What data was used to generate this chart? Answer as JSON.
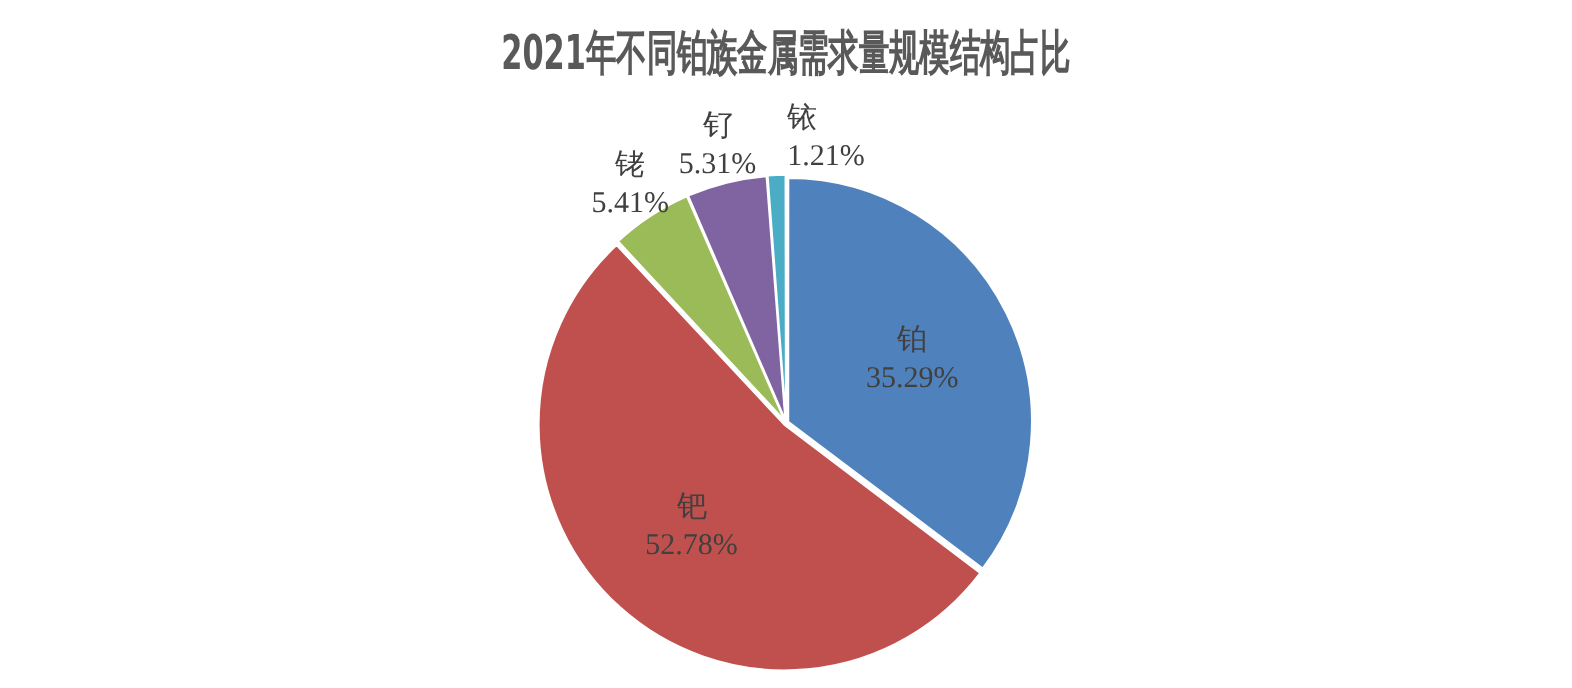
{
  "chart_data": {
    "type": "pie",
    "title": "2021年不同铂族金属需求量规模结构占比",
    "categories": [
      "铂",
      "钯",
      "铑",
      "钌",
      "铱"
    ],
    "values": [
      35.29,
      52.78,
      5.41,
      5.31,
      1.21
    ],
    "value_labels": [
      "35.29%",
      "52.78%",
      "5.41%",
      "5.31%",
      "1.21%"
    ],
    "colors": [
      "#4f81bd",
      "#c0504d",
      "#9bbb59",
      "#8064a2",
      "#4bacc6"
    ],
    "legend": false
  }
}
